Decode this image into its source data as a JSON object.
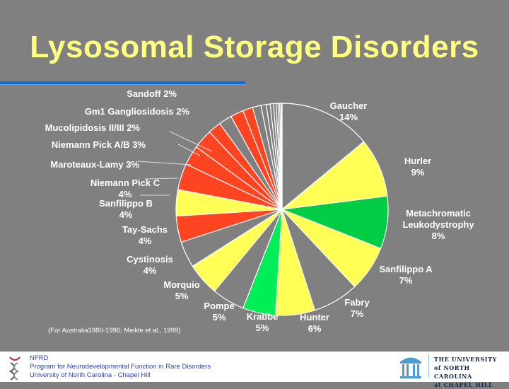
{
  "title": "Lysosomal Storage Disorders",
  "footnote": "(For Australia1980-1996; Meikle et al., 1999)",
  "footer": {
    "line1": "NFRD",
    "line2": "Program for Neurodevelopmental Function in Rare Disorders",
    "line3": "University of North Carolina - Chapel Hill",
    "logo_text": [
      "THE UNIVERSITY",
      "of NORTH CAROLINA",
      "at CHAPEL HILL"
    ]
  },
  "colors": {
    "gray": "#808080",
    "yellow": "#ffff55",
    "green": "#00cc44",
    "bright_green": "#00ee55",
    "red": "#ff4422",
    "title": "#ffff80"
  },
  "chart_data": {
    "type": "pie",
    "title": "Lysosomal Storage Disorders",
    "unit": "%",
    "slices": [
      {
        "name": "Gaucher",
        "value": 14,
        "color": "#808080"
      },
      {
        "name": "Hurler",
        "value": 9,
        "color": "#ffff55"
      },
      {
        "name": "Metachromatic Leukodystrophy",
        "value": 8,
        "color": "#00cc44"
      },
      {
        "name": "Sanfilippo A",
        "value": 7,
        "color": "#ffff55"
      },
      {
        "name": "Fabry",
        "value": 7,
        "color": "#808080"
      },
      {
        "name": "Hunter",
        "value": 6,
        "color": "#ffff55"
      },
      {
        "name": "Krabbe",
        "value": 5,
        "color": "#00ee55"
      },
      {
        "name": "Pompe",
        "value": 5,
        "color": "#808080"
      },
      {
        "name": "Morquio",
        "value": 5,
        "color": "#ffff55"
      },
      {
        "name": "Cystinosis",
        "value": 4,
        "color": "#808080"
      },
      {
        "name": "Tay-Sachs",
        "value": 4,
        "color": "#ff4422"
      },
      {
        "name": "Sanfilippo B",
        "value": 4,
        "color": "#ffff55"
      },
      {
        "name": "Niemann Pick C",
        "value": 4,
        "color": "#ff4422"
      },
      {
        "name": "Maroteaux-Lamy",
        "value": 3,
        "color": "#ff4422"
      },
      {
        "name": "Niemann Pick A/B",
        "value": 3,
        "color": "#ff4422"
      },
      {
        "name": "Mucolipidosis II/III",
        "value": 2,
        "color": "#ff4422"
      },
      {
        "name": "Gm1 Gangliosidosis",
        "value": 2,
        "color": "#808080"
      },
      {
        "name": "Sandoff",
        "value": 2,
        "color": "#ff4422"
      },
      {
        "name": "",
        "value": 1.5,
        "color": "#ff4422"
      },
      {
        "name": "",
        "value": 1.3,
        "color": "#808080"
      },
      {
        "name": "",
        "value": 0.8,
        "color": "#808080"
      },
      {
        "name": "",
        "value": 0.6,
        "color": "#808080"
      },
      {
        "name": "",
        "value": 0.5,
        "color": "#808080"
      },
      {
        "name": "",
        "value": 0.4,
        "color": "#808080"
      },
      {
        "name": "",
        "value": 0.3,
        "color": "#808080"
      },
      {
        "name": "",
        "value": 0.25,
        "color": "#808080"
      },
      {
        "name": "",
        "value": 0.2,
        "color": "#808080"
      },
      {
        "name": "",
        "value": 0.15,
        "color": "#808080"
      }
    ],
    "labels": [
      "Gaucher\n14%",
      "Hurler\n9%",
      "Metachromatic\nLeukodystrophy\n8%",
      "Sanfilippo A\n7%",
      "Fabry\n7%",
      "Hunter\n6%",
      "Krabbe\n5%",
      "Pompe\n5%",
      "Morquio\n5%",
      "Cystinosis\n4%",
      "Tay-Sachs\n4%",
      "Sanfilippo B\n4%",
      "Niemann Pick C\n4%",
      "Maroteaux-Lamy 3%",
      "Niemann Pick A/B 3%",
      "Mucolipidosis II/III 2%",
      "Gm1 Gangliosidosis 2%",
      "Sandoff 2%"
    ],
    "legend": "none"
  }
}
